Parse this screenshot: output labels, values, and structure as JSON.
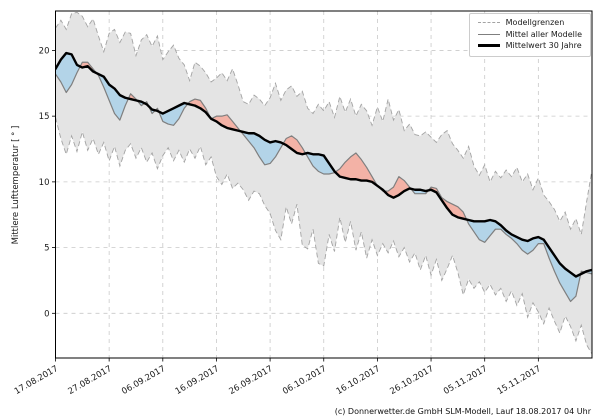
{
  "caption": "(c) Donnerwetter.de GmbH SLM-Modell, Lauf 18.08.2017 04 Uhr",
  "colors": {
    "envelope_fill": "#e4e4e4",
    "envelope_edge": "#a3a3a3",
    "grid": "#c9c9c9",
    "model_mean": "#7f7f7f",
    "mean30": "#000000",
    "above_fill": "#f3b2a6",
    "below_fill": "#b3d4e8",
    "frame": "#000000"
  },
  "chart_data": {
    "type": "line",
    "title": "",
    "xlabel": "",
    "ylabel": "Mittlere Lufttemperatur [ ° ]",
    "grid": true,
    "xlim_days": [
      0,
      100
    ],
    "ylim": [
      -3.4,
      23.0
    ],
    "y_ticks": [
      0,
      5,
      10,
      15,
      20
    ],
    "x_tick_days": [
      0,
      10,
      20,
      30,
      40,
      50,
      60,
      70,
      80,
      90
    ],
    "x_tick_labels": [
      "17.08.2017",
      "27.08.2017",
      "06.09.2017",
      "16.09.2017",
      "26.09.2017",
      "06.10.2017",
      "16.10.2017",
      "26.10.2017",
      "05.11.2017",
      "15.11.2017"
    ],
    "x_step_days": 1,
    "legend": {
      "position": "upper right",
      "items": [
        {
          "label": "Modellgrenzen",
          "style": "dashed-gray"
        },
        {
          "label": "Mittel aller Modelle",
          "style": "solid-gray"
        },
        {
          "label": "Mittelwert 30 Jahre",
          "style": "thick-black"
        }
      ]
    },
    "series": [
      {
        "name": "Modellgrenzen max",
        "role": "envelope_upper",
        "values": [
          21.7,
          22.3,
          21.6,
          22.8,
          22.9,
          22.6,
          21.8,
          22.4,
          21.1,
          19.9,
          21.3,
          21.6,
          20.6,
          21.4,
          21.3,
          19.6,
          20.8,
          21.2,
          20.3,
          21.1,
          19.3,
          19.9,
          20.4,
          19.4,
          18.9,
          17.7,
          19.1,
          18.8,
          18.3,
          17.6,
          17.9,
          18.3,
          17.7,
          18.6,
          17.4,
          16.1,
          15.9,
          16.6,
          16.3,
          15.8,
          16.4,
          17.5,
          16.2,
          17.0,
          17.3,
          16.5,
          16.9,
          15.6,
          15.2,
          15.9,
          15.4,
          16.1,
          14.9,
          16.5,
          15.3,
          16.3,
          15.0,
          15.9,
          15.4,
          14.3,
          15.7,
          14.6,
          16.3,
          14.7,
          15.5,
          13.9,
          14.4,
          13.6,
          13.5,
          13.8,
          13.4,
          13.0,
          13.6,
          13.9,
          12.9,
          12.4,
          11.8,
          12.7,
          11.2,
          10.5,
          11.3,
          10.0,
          10.8,
          10.3,
          10.9,
          10.4,
          11.1,
          10.0,
          10.6,
          9.4,
          10.3,
          9.0,
          8.5,
          7.9,
          7.0,
          7.7,
          6.4,
          7.2,
          6.0,
          8.5,
          10.9
        ]
      },
      {
        "name": "Modellgrenzen min",
        "role": "envelope_lower",
        "values": [
          14.9,
          13.3,
          12.1,
          13.5,
          12.3,
          13.8,
          12.4,
          13.3,
          12.1,
          13.0,
          11.6,
          12.7,
          11.2,
          12.4,
          12.9,
          11.8,
          12.6,
          11.5,
          12.2,
          11.0,
          12.0,
          12.6,
          11.6,
          12.4,
          11.5,
          12.5,
          11.8,
          12.7,
          11.3,
          11.9,
          10.4,
          9.8,
          10.6,
          9.5,
          9.9,
          9.4,
          8.6,
          9.3,
          9.1,
          8.2,
          7.6,
          6.3,
          5.6,
          8.1,
          6.8,
          8.3,
          5.2,
          4.9,
          6.4,
          3.8,
          3.6,
          6.0,
          4.7,
          7.3,
          5.4,
          7.0,
          4.8,
          6.2,
          4.2,
          5.6,
          4.4,
          5.3,
          4.6,
          5.5,
          4.3,
          5.0,
          3.9,
          4.6,
          3.3,
          4.4,
          2.9,
          4.1,
          2.5,
          3.4,
          4.4,
          3.1,
          1.4,
          2.6,
          1.9,
          2.4,
          1.6,
          2.2,
          1.4,
          1.9,
          0.9,
          1.7,
          0.6,
          1.5,
          -0.3,
          0.8,
          0.1,
          -0.8,
          0.4,
          -0.6,
          -1.5,
          -0.2,
          -1.0,
          -2.1,
          -0.9,
          -2.4,
          -3.1
        ]
      },
      {
        "name": "Mittel aller Modelle",
        "role": "model_mean",
        "values": [
          18.2,
          17.6,
          16.8,
          17.4,
          18.3,
          19.1,
          19.1,
          18.6,
          18.1,
          17.2,
          16.2,
          15.2,
          14.7,
          15.8,
          16.7,
          16.3,
          15.8,
          16.1,
          15.2,
          15.6,
          14.6,
          14.4,
          14.3,
          14.8,
          15.6,
          16.1,
          16.3,
          16.2,
          15.6,
          14.8,
          15.0,
          15.0,
          15.1,
          14.6,
          14.1,
          13.6,
          13.1,
          12.6,
          11.9,
          11.3,
          11.4,
          11.9,
          12.6,
          13.3,
          13.5,
          13.2,
          12.6,
          11.9,
          11.2,
          10.8,
          10.6,
          10.6,
          10.7,
          11.0,
          11.5,
          11.9,
          12.2,
          11.7,
          11.1,
          10.4,
          9.7,
          9.3,
          9.3,
          9.6,
          10.4,
          10.1,
          9.6,
          9.1,
          9.1,
          9.1,
          9.6,
          9.5,
          8.8,
          8.5,
          8.3,
          8.1,
          7.7,
          6.8,
          6.2,
          5.6,
          5.4,
          5.9,
          6.4,
          6.4,
          6.0,
          5.7,
          5.3,
          4.8,
          4.5,
          4.8,
          5.3,
          5.3,
          4.2,
          3.2,
          2.3,
          1.6,
          0.9,
          1.3,
          3.2,
          3.1,
          3.0
        ]
      },
      {
        "name": "Mittelwert 30 Jahre",
        "role": "mean30",
        "values": [
          18.6,
          19.3,
          19.8,
          19.7,
          18.9,
          18.7,
          18.8,
          18.4,
          18.2,
          18.0,
          17.4,
          17.1,
          16.6,
          16.4,
          16.3,
          16.2,
          16.1,
          15.9,
          15.5,
          15.4,
          15.2,
          15.4,
          15.6,
          15.8,
          16.0,
          15.9,
          15.8,
          15.6,
          15.3,
          14.8,
          14.6,
          14.3,
          14.1,
          14.0,
          13.9,
          13.8,
          13.7,
          13.7,
          13.5,
          13.2,
          13.0,
          13.1,
          13.0,
          12.8,
          12.5,
          12.2,
          12.1,
          12.2,
          12.1,
          12.1,
          12.0,
          11.4,
          10.8,
          10.4,
          10.3,
          10.2,
          10.2,
          10.1,
          10.1,
          10.0,
          9.7,
          9.4,
          9.0,
          8.8,
          9.0,
          9.3,
          9.5,
          9.4,
          9.4,
          9.3,
          9.4,
          9.2,
          8.6,
          8.0,
          7.5,
          7.3,
          7.2,
          7.1,
          7.0,
          7.0,
          7.0,
          7.1,
          7.0,
          6.7,
          6.3,
          6.0,
          5.8,
          5.6,
          5.5,
          5.7,
          5.8,
          5.6,
          5.0,
          4.4,
          3.8,
          3.4,
          3.1,
          2.8,
          3.0,
          3.2,
          3.3
        ]
      }
    ]
  }
}
